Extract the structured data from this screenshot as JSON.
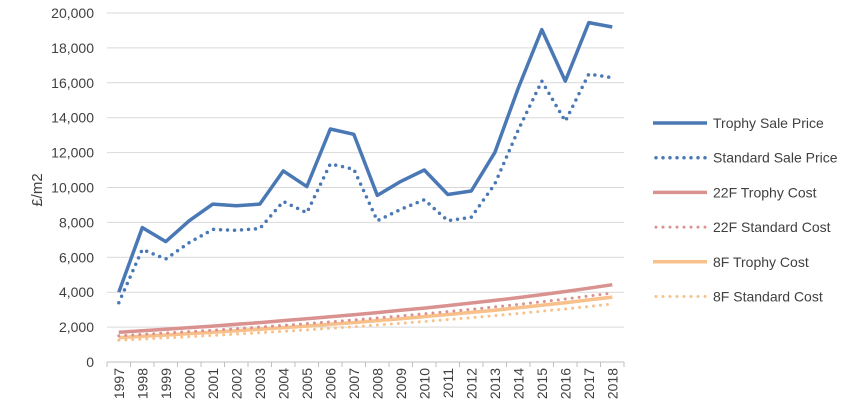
{
  "chart_data": {
    "type": "line",
    "title": "",
    "xlabel": "",
    "ylabel": "£/m2",
    "ylim": [
      0,
      20000
    ],
    "yticks": [
      0,
      2000,
      4000,
      6000,
      8000,
      10000,
      12000,
      14000,
      16000,
      18000,
      20000
    ],
    "ytick_labels": [
      "0",
      "2,000",
      "4,000",
      "6,000",
      "8,000",
      "10,000",
      "12,000",
      "14,000",
      "16,000",
      "18,000",
      "20,000"
    ],
    "grid": true,
    "legend_position": "right",
    "x": [
      "1997",
      "1998",
      "1999",
      "2000",
      "2001",
      "2002",
      "2003",
      "2004",
      "2005",
      "2006",
      "2007",
      "2008",
      "2009",
      "2010",
      "2011",
      "2012",
      "2013",
      "2014",
      "2015",
      "2016",
      "2017",
      "2018"
    ],
    "series": [
      {
        "name": "Trophy Sale Price",
        "color": "#4a78b5",
        "style": "solid",
        "width": "thick",
        "values": [
          4000,
          7700,
          6900,
          8100,
          9050,
          8950,
          9050,
          10950,
          10050,
          13350,
          13050,
          9550,
          10350,
          11000,
          9600,
          9800,
          12000,
          15700,
          19050,
          16100,
          19450,
          19200
        ]
      },
      {
        "name": "Standard Sale Price",
        "color": "#4a78b5",
        "style": "dotted",
        "width": "thick",
        "values": [
          3400,
          6450,
          5900,
          6850,
          7600,
          7550,
          7650,
          9200,
          8550,
          11350,
          11050,
          8100,
          8750,
          9300,
          8100,
          8300,
          10200,
          13300,
          16100,
          13800,
          16500,
          16300
        ]
      },
      {
        "name": "22F Trophy Cost",
        "color": "#d9928f",
        "style": "solid",
        "width": "thick",
        "values": [
          1700,
          1790,
          1880,
          1970,
          2060,
          2160,
          2260,
          2370,
          2480,
          2590,
          2710,
          2830,
          2960,
          3090,
          3230,
          3380,
          3530,
          3690,
          3860,
          4040,
          4230,
          4430
        ]
      },
      {
        "name": "22F Standard Cost",
        "color": "#d9928f",
        "style": "dotted",
        "width": "thin",
        "values": [
          1500,
          1580,
          1660,
          1740,
          1820,
          1910,
          2000,
          2100,
          2200,
          2300,
          2410,
          2520,
          2640,
          2760,
          2890,
          3020,
          3160,
          3300,
          3450,
          3610,
          3780,
          3950
        ]
      },
      {
        "name": "8F Trophy Cost",
        "color": "#f8c08a",
        "style": "solid",
        "width": "thick",
        "values": [
          1400,
          1470,
          1550,
          1630,
          1710,
          1790,
          1880,
          1970,
          2060,
          2160,
          2260,
          2370,
          2480,
          2600,
          2720,
          2840,
          2970,
          3110,
          3250,
          3400,
          3560,
          3720
        ]
      },
      {
        "name": "8F Standard Cost",
        "color": "#f8c08a",
        "style": "dotted",
        "width": "thin",
        "values": [
          1250,
          1310,
          1380,
          1450,
          1520,
          1600,
          1680,
          1760,
          1840,
          1930,
          2020,
          2120,
          2220,
          2320,
          2430,
          2540,
          2660,
          2780,
          2910,
          3040,
          3180,
          3330
        ]
      }
    ]
  }
}
